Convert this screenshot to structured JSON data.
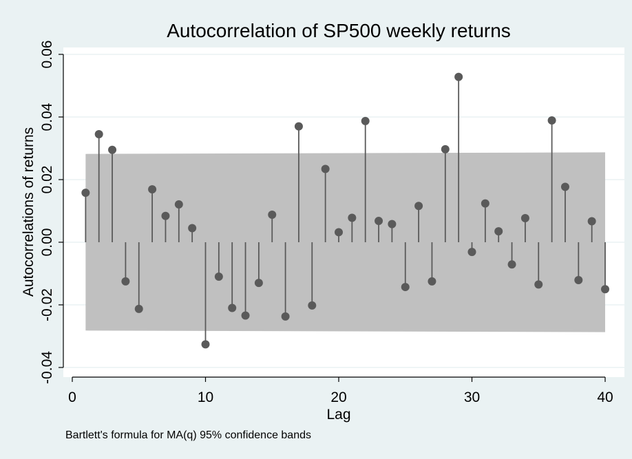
{
  "chart_data": {
    "type": "stem",
    "title": "Autocorrelation of SP500 weekly returns",
    "xlabel": "Lag",
    "ylabel": "Autocorrelations of returns",
    "note": "Bartlett's formula for MA(q) 95% confidence bands",
    "xlim": [
      0,
      40
    ],
    "ylim": [
      -0.04,
      0.06
    ],
    "x_ticks": [
      0,
      10,
      20,
      30,
      40
    ],
    "x_tick_labels": [
      "0",
      "10",
      "20",
      "30",
      "40"
    ],
    "y_ticks": [
      -0.04,
      -0.02,
      0.0,
      0.02,
      0.04,
      0.06
    ],
    "y_tick_labels": [
      "-0.04",
      "-0.02",
      "0.00",
      "0.02",
      "0.04",
      "0.06"
    ],
    "grid": "horizontal",
    "x": [
      1,
      2,
      3,
      4,
      5,
      6,
      7,
      8,
      9,
      10,
      11,
      12,
      13,
      14,
      15,
      16,
      17,
      18,
      19,
      20,
      21,
      22,
      23,
      24,
      25,
      26,
      27,
      28,
      29,
      30,
      31,
      32,
      33,
      34,
      35,
      36,
      37,
      38,
      39,
      40
    ],
    "values": [
      0.0158,
      0.0345,
      0.0295,
      -0.0125,
      -0.0213,
      0.0169,
      0.0084,
      0.0121,
      0.0045,
      -0.0326,
      -0.011,
      -0.021,
      -0.0234,
      -0.013,
      0.0088,
      -0.0237,
      0.037,
      -0.0202,
      0.0234,
      0.0032,
      0.0078,
      0.0387,
      0.0068,
      0.0058,
      -0.0143,
      0.0116,
      -0.0125,
      0.0297,
      0.0528,
      -0.0031,
      0.0124,
      0.0035,
      -0.0071,
      0.0077,
      -0.0135,
      0.0389,
      0.0177,
      -0.0121,
      0.0067,
      -0.015
    ],
    "confidence_band": {
      "x": [
        1,
        40
      ],
      "upper": [
        0.0282,
        0.0287
      ],
      "lower": [
        -0.0282,
        -0.0287
      ]
    },
    "colors": {
      "background": "#eaf2f3",
      "plot_area": "#ffffff",
      "band": "#c0c0c0",
      "stem": "#5a5a5a",
      "grid": "#eaf2f3",
      "axis": "#000000"
    }
  }
}
